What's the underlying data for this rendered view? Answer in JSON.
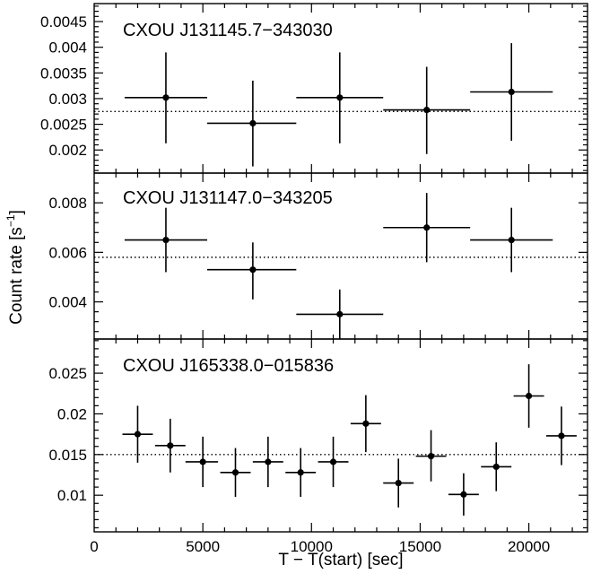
{
  "chart_data": [
    {
      "type": "scatter",
      "panel_label": "CXOU J131145.7−343030",
      "ylim": [
        0.00155,
        0.00485
      ],
      "yticks": [
        0.002,
        0.0025,
        0.003,
        0.0035,
        0.004,
        0.0045
      ],
      "ytick_labels": [
        "0.002",
        "0.0025",
        "0.003",
        "0.0035",
        "0.004",
        "0.0045"
      ],
      "mean_level": 0.00275,
      "points": [
        {
          "x": 3300,
          "x_lo": 1400,
          "x_hi": 5200,
          "y": 0.00302,
          "y_lo": 0.00213,
          "y_hi": 0.0039
        },
        {
          "x": 7300,
          "x_lo": 5200,
          "x_hi": 9300,
          "y": 0.00252,
          "y_lo": 0.00168,
          "y_hi": 0.00335
        },
        {
          "x": 11300,
          "x_lo": 9300,
          "x_hi": 13300,
          "y": 0.00302,
          "y_lo": 0.00213,
          "y_hi": 0.0039
        },
        {
          "x": 15300,
          "x_lo": 13300,
          "x_hi": 17300,
          "y": 0.00278,
          "y_lo": 0.00192,
          "y_hi": 0.00362
        },
        {
          "x": 19200,
          "x_lo": 17300,
          "x_hi": 21100,
          "y": 0.00313,
          "y_lo": 0.00218,
          "y_hi": 0.00408
        }
      ]
    },
    {
      "type": "scatter",
      "panel_label": "CXOU J131147.0−343205",
      "ylim": [
        0.0025,
        0.0092
      ],
      "yticks": [
        0.004,
        0.006,
        0.008
      ],
      "ytick_labels": [
        "0.004",
        "0.006",
        "0.008"
      ],
      "mean_level": 0.0058,
      "points": [
        {
          "x": 3300,
          "x_lo": 1400,
          "x_hi": 5200,
          "y": 0.0065,
          "y_lo": 0.0052,
          "y_hi": 0.0078
        },
        {
          "x": 7300,
          "x_lo": 5200,
          "x_hi": 9300,
          "y": 0.0053,
          "y_lo": 0.0041,
          "y_hi": 0.0064
        },
        {
          "x": 11300,
          "x_lo": 9300,
          "x_hi": 13300,
          "y": 0.0035,
          "y_lo": 0.0025,
          "y_hi": 0.0045
        },
        {
          "x": 15300,
          "x_lo": 13300,
          "x_hi": 17300,
          "y": 0.007,
          "y_lo": 0.0056,
          "y_hi": 0.0084
        },
        {
          "x": 19200,
          "x_lo": 17300,
          "x_hi": 21100,
          "y": 0.0065,
          "y_lo": 0.0052,
          "y_hi": 0.0078
        }
      ]
    },
    {
      "type": "scatter",
      "panel_label": "CXOU J165338.0−015836",
      "ylim": [
        0.0055,
        0.0292
      ],
      "yticks": [
        0.01,
        0.015,
        0.02,
        0.025
      ],
      "ytick_labels": [
        "0.01",
        "0.015",
        "0.02",
        "0.025"
      ],
      "mean_level": 0.015,
      "points": [
        {
          "x": 2000,
          "x_lo": 1300,
          "x_hi": 2700,
          "y": 0.0175,
          "y_lo": 0.014,
          "y_hi": 0.021
        },
        {
          "x": 3500,
          "x_lo": 2800,
          "x_hi": 4200,
          "y": 0.0161,
          "y_lo": 0.0128,
          "y_hi": 0.0194
        },
        {
          "x": 5000,
          "x_lo": 4200,
          "x_hi": 5700,
          "y": 0.0141,
          "y_lo": 0.011,
          "y_hi": 0.0172
        },
        {
          "x": 6500,
          "x_lo": 5800,
          "x_hi": 7200,
          "y": 0.0128,
          "y_lo": 0.0098,
          "y_hi": 0.0158
        },
        {
          "x": 8000,
          "x_lo": 7300,
          "x_hi": 8700,
          "y": 0.0141,
          "y_lo": 0.011,
          "y_hi": 0.0172
        },
        {
          "x": 9500,
          "x_lo": 8800,
          "x_hi": 10200,
          "y": 0.0128,
          "y_lo": 0.0098,
          "y_hi": 0.0158
        },
        {
          "x": 11000,
          "x_lo": 10300,
          "x_hi": 11700,
          "y": 0.0141,
          "y_lo": 0.011,
          "y_hi": 0.0172
        },
        {
          "x": 12500,
          "x_lo": 11800,
          "x_hi": 13200,
          "y": 0.0188,
          "y_lo": 0.0153,
          "y_hi": 0.0223
        },
        {
          "x": 14000,
          "x_lo": 13300,
          "x_hi": 14700,
          "y": 0.0115,
          "y_lo": 0.0085,
          "y_hi": 0.0145
        },
        {
          "x": 15500,
          "x_lo": 14800,
          "x_hi": 16200,
          "y": 0.0148,
          "y_lo": 0.0117,
          "y_hi": 0.018
        },
        {
          "x": 17000,
          "x_lo": 16300,
          "x_hi": 17700,
          "y": 0.0101,
          "y_lo": 0.0075,
          "y_hi": 0.0127
        },
        {
          "x": 18500,
          "x_lo": 17800,
          "x_hi": 19200,
          "y": 0.0135,
          "y_lo": 0.0105,
          "y_hi": 0.0165
        },
        {
          "x": 20000,
          "x_lo": 19300,
          "x_hi": 20700,
          "y": 0.0222,
          "y_lo": 0.0183,
          "y_hi": 0.0261
        },
        {
          "x": 21500,
          "x_lo": 20800,
          "x_hi": 22200,
          "y": 0.0173,
          "y_lo": 0.0137,
          "y_hi": 0.0209
        }
      ]
    }
  ],
  "shared_axes": {
    "xlim": [
      0,
      22700
    ],
    "xticks": [
      0,
      5000,
      10000,
      15000,
      20000
    ],
    "xtick_labels": [
      "0",
      "5000",
      "10000",
      "15000",
      "20000"
    ],
    "xlabel": "T − T(start) [sec]",
    "ylabel_main": "Count rate [s",
    "ylabel_sup": "−1",
    "ylabel_close": "]",
    "grid": false,
    "mean_line_style": "dotted"
  },
  "colors": {
    "ink": "#000000",
    "background": "#ffffff"
  }
}
